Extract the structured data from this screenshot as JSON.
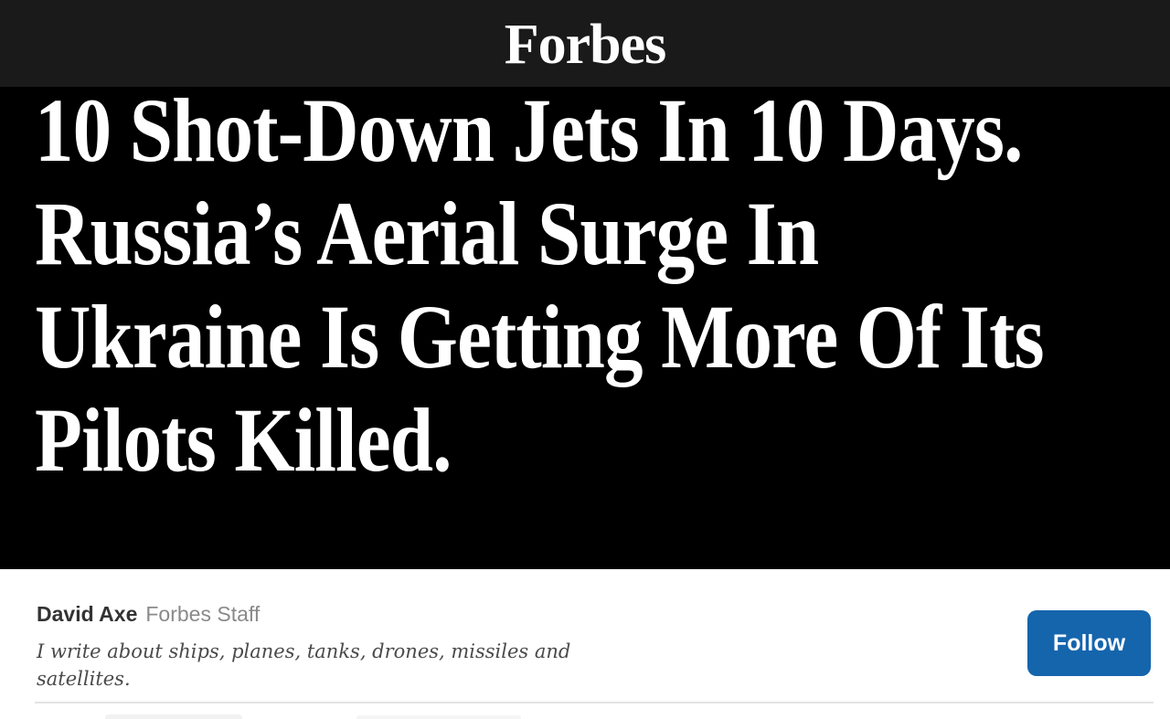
{
  "header": {
    "logo": "Forbes"
  },
  "hero": {
    "headline": "10 Shot-Down Jets In 10 Days.\nRussia’s Aerial Surge In\nUkraine Is Getting More Of Its\nPilots Killed."
  },
  "author": {
    "name": "David Axe",
    "role": "Forbes Staff",
    "bio": "I write about ships, planes, tanks, drones, missiles and\nsatellites.",
    "follow_label": "Follow"
  },
  "colors": {
    "header_bg": "#1a1a1a",
    "hero_bg": "#000000",
    "headline_text": "#ffffff",
    "author_name": "#333333",
    "author_role": "#8a8a8a",
    "bio_text": "#4a4a4a",
    "follow_bg": "#1565ad",
    "follow_text": "#ffffff",
    "divider": "#e3e3e3"
  }
}
